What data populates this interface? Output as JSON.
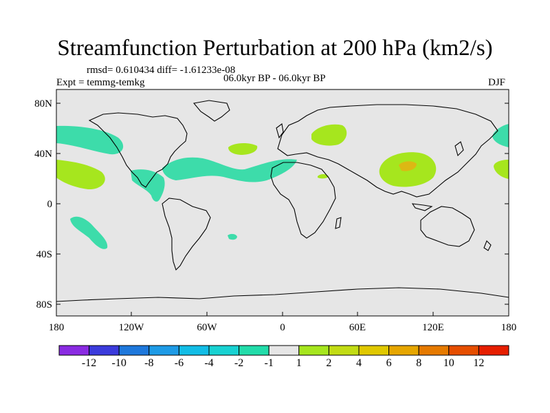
{
  "header": {
    "title": "Streamfunction Perturbation at 200 hPa (km2/s)",
    "stats": "rmsd= 0.610434 diff= -1.61233e-08",
    "period": "06.0kyr BP - 06.0kyr BP",
    "experiment": "Expt = temmg-temkg",
    "season": "DJF"
  },
  "axes": {
    "lat_labels": [
      "80N",
      "40N",
      "0",
      "40S",
      "80S"
    ],
    "lon_labels": [
      "180",
      "120W",
      "60W",
      "0",
      "60E",
      "120E",
      "180"
    ]
  },
  "colorbar": {
    "colors": [
      "#8a2be2",
      "#3b3bdc",
      "#1e78dc",
      "#1e9be6",
      "#12bde6",
      "#18d2d2",
      "#22dcaa",
      "#e6e6e6",
      "#a6e61e",
      "#c2dc14",
      "#e0c800",
      "#e6a600",
      "#e67a00",
      "#e64e00",
      "#e61e00"
    ],
    "labels": [
      "-12",
      "-10",
      "-8",
      "-6",
      "-4",
      "-2",
      "-1",
      "1",
      "2",
      "4",
      "6",
      "8",
      "10",
      "12"
    ]
  },
  "map": {
    "background": "#e6e6e6",
    "negative_color": "#3ddcaa",
    "positive_color": "#a6e61e",
    "peak_color": "#dcb814"
  }
}
